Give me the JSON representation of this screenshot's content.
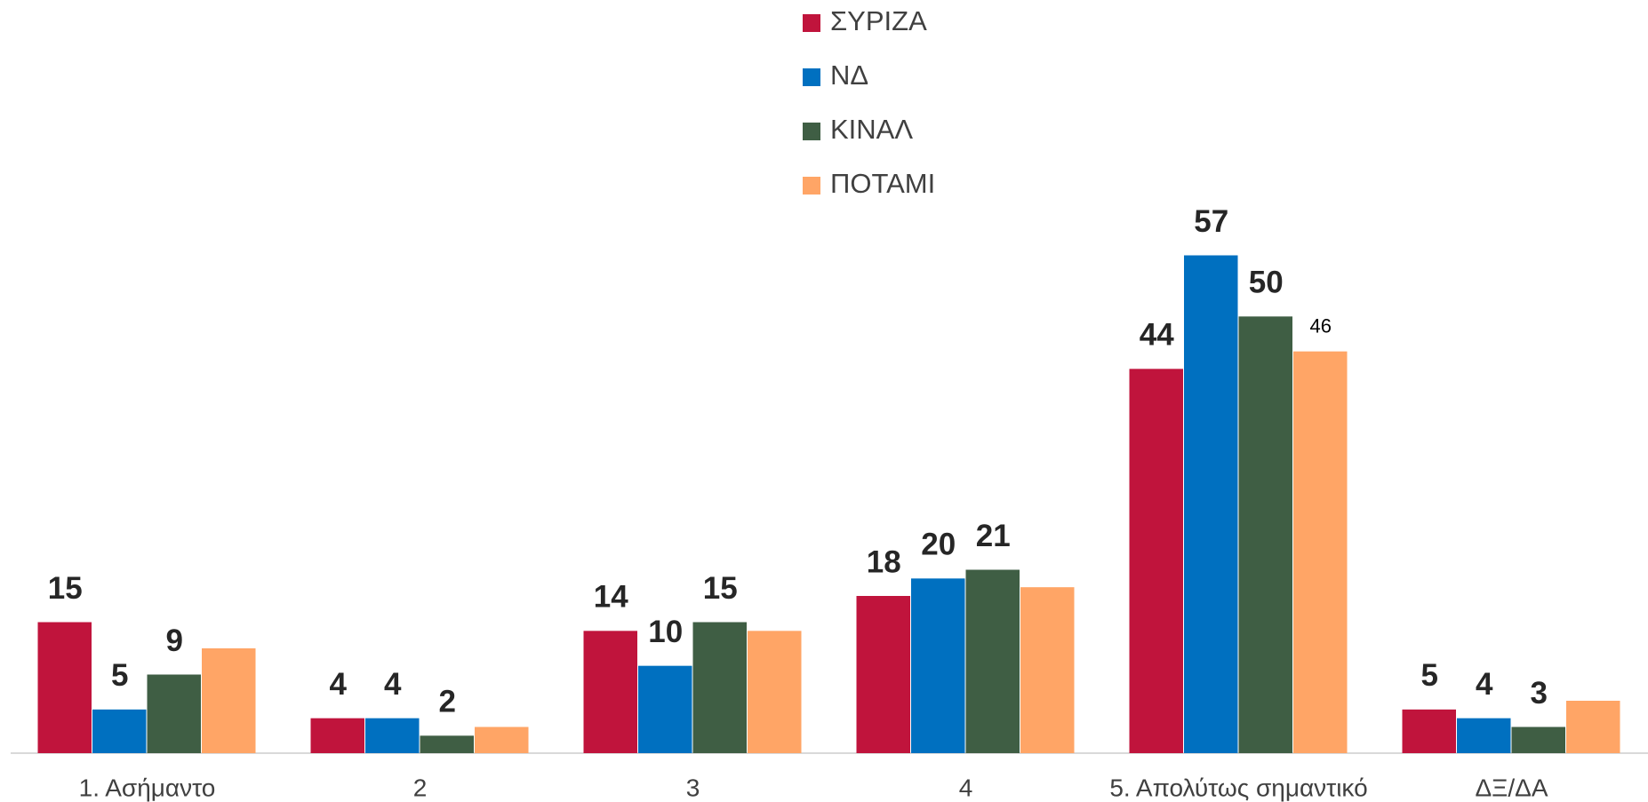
{
  "chart_data": {
    "type": "bar",
    "categories": [
      "1. Ασήμαντο",
      "2",
      "3",
      "4",
      "5. Απολύτως σημαντικό",
      "ΔΞ/ΔΑ"
    ],
    "series": [
      {
        "name": "ΣΥΡΙΖΑ",
        "color": "#C0143C",
        "values": [
          15,
          4,
          14,
          18,
          44,
          5
        ]
      },
      {
        "name": "ΝΔ",
        "color": "#0070C0",
        "values": [
          5,
          4,
          10,
          20,
          57,
          4
        ]
      },
      {
        "name": "ΚΙΝΑΛ",
        "color": "#3F5E44",
        "values": [
          9,
          2,
          15,
          21,
          50,
          3
        ]
      },
      {
        "name": "ΠΟΤΑΜΙ",
        "color": "#FFA566",
        "values": [
          12,
          3,
          14,
          19,
          46,
          6
        ],
        "value_labels": [
          null,
          null,
          null,
          null,
          "46",
          null
        ]
      }
    ],
    "ylim": [
      0,
      60
    ],
    "legend": "top"
  }
}
